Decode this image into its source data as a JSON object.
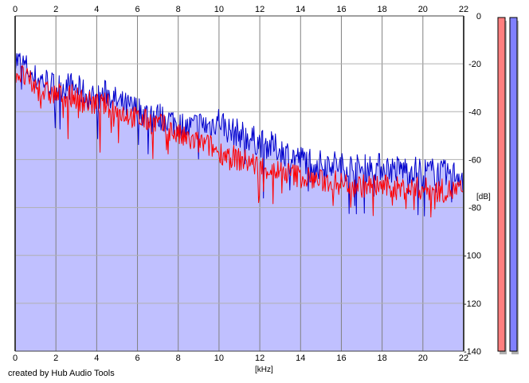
{
  "chart_data": {
    "type": "area",
    "xlabel": "[kHz]",
    "ylabel": "[dB]",
    "xlim": [
      0,
      22
    ],
    "ylim": [
      -140,
      0
    ],
    "x_ticks": [
      "0",
      "2",
      "4",
      "6",
      "8",
      "10",
      "12",
      "14",
      "16",
      "18",
      "20",
      "22"
    ],
    "y_ticks": [
      "0",
      "-20",
      "-40",
      "-60",
      "-80",
      "-100",
      "-120",
      "-140"
    ],
    "grid": true,
    "series": [
      {
        "color": "#0000cc",
        "fill": "#c0c0ff",
        "x": [
          0,
          0.5,
          1,
          1.5,
          2,
          2.5,
          3,
          3.5,
          4,
          4.5,
          5,
          5.5,
          6,
          6.5,
          7,
          7.5,
          8,
          8.5,
          9,
          9.5,
          10,
          10.5,
          11,
          11.5,
          12,
          12.5,
          13,
          13.5,
          14,
          14.5,
          15,
          15.5,
          16,
          16.5,
          17,
          17.5,
          18,
          18.5,
          19,
          19.5,
          20,
          20.5,
          21,
          21.5,
          22
        ],
        "values": [
          -18,
          -21,
          -26,
          -27,
          -30,
          -29,
          -30,
          -33,
          -35,
          -32,
          -36,
          -38,
          -39,
          -41,
          -42,
          -43,
          -45,
          -47,
          -45,
          -46,
          -43,
          -48,
          -49,
          -51,
          -53,
          -54,
          -56,
          -58,
          -60,
          -60,
          -62,
          -61,
          -63,
          -63,
          -64,
          -63,
          -63,
          -64,
          -64,
          -64,
          -65,
          -65,
          -66,
          -66,
          -66
        ]
      },
      {
        "color": "#ff0000",
        "x": [
          0,
          0.5,
          1,
          1.5,
          2,
          2.5,
          3,
          3.5,
          4,
          4.5,
          5,
          5.5,
          6,
          6.5,
          7,
          7.5,
          8,
          8.5,
          9,
          9.5,
          10,
          10.5,
          11,
          11.5,
          12,
          12.5,
          13,
          13.5,
          14,
          14.5,
          15,
          15.5,
          16,
          16.5,
          17,
          17.5,
          18,
          18.5,
          19,
          19.5,
          20,
          20.5,
          21,
          21.5,
          22
        ],
        "values": [
          -23,
          -26,
          -30,
          -32,
          -33,
          -33,
          -34,
          -36,
          -37,
          -37,
          -40,
          -41,
          -43,
          -44,
          -45,
          -47,
          -50,
          -52,
          -53,
          -54,
          -57,
          -58,
          -60,
          -61,
          -63,
          -64,
          -65,
          -66,
          -67,
          -68,
          -69,
          -69,
          -70,
          -70,
          -71,
          -71,
          -71,
          -72,
          -72,
          -72,
          -72,
          -73,
          -73,
          -73,
          -73
        ]
      }
    ],
    "level_meters": [
      {
        "color": "#ff7f7f",
        "level": 1.0
      },
      {
        "color": "#8080ff",
        "level": 1.0
      }
    ]
  },
  "credit": "created by Hub Audio Tools"
}
